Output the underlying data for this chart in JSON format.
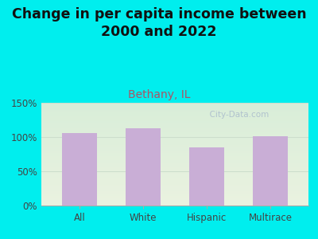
{
  "title": "Change in per capita income between\n2000 and 2022",
  "subtitle": "Bethany, IL",
  "categories": [
    "All",
    "White",
    "Hispanic",
    "Multirace"
  ],
  "values": [
    106,
    113,
    85,
    101
  ],
  "bar_color": "#c9aed6",
  "title_fontsize": 12.5,
  "subtitle_fontsize": 10,
  "subtitle_color": "#aa5566",
  "title_color": "#111111",
  "background_outer": "#00eeee",
  "background_inner_top": "#eaf2e0",
  "background_inner_bottom": "#d8edd8",
  "ylim": [
    0,
    150
  ],
  "yticks": [
    0,
    50,
    100,
    150
  ],
  "ytick_labels": [
    "0%",
    "50%",
    "100%",
    "150%"
  ],
  "watermark": "  City-Data.com",
  "watermark_color": "#aabbcc",
  "grid_color": "#ccddcc"
}
